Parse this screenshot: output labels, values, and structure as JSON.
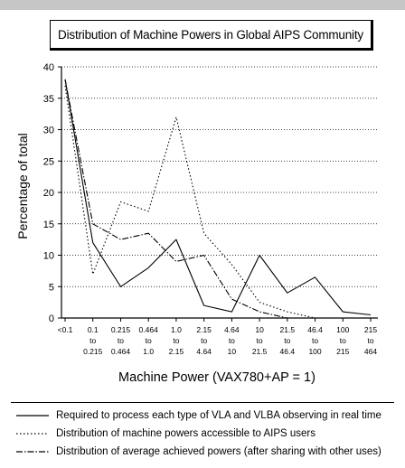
{
  "chart_data": {
    "type": "line",
    "title": "Distribution of Machine Powers in Global AIPS Community",
    "xlabel": "Machine Power (VAX780+AP = 1)",
    "ylabel": "Percentage of total",
    "ylim": [
      0,
      40
    ],
    "yticks": [
      "0",
      "5",
      "10",
      "15",
      "20",
      "25",
      "30",
      "35",
      "40"
    ],
    "grid": "horizontal dotted",
    "categories": [
      [
        "<0.1"
      ],
      [
        "0.1",
        "to",
        "0.215"
      ],
      [
        "0.215",
        "to",
        "0.464"
      ],
      [
        "0.464",
        "to",
        "1.0"
      ],
      [
        "1.0",
        "to",
        "2.15"
      ],
      [
        "2.15",
        "to",
        "4.64"
      ],
      [
        "4.64",
        "to",
        "10"
      ],
      [
        "10",
        "to",
        "21.5"
      ],
      [
        "21.5",
        "to",
        "46.4"
      ],
      [
        "46.4",
        "to",
        "100"
      ],
      [
        "100",
        "to",
        "215"
      ],
      [
        "215",
        "to",
        "464"
      ]
    ],
    "series": [
      {
        "name": "Required to process each type of VLA and VLBA observing in real time",
        "style": "solid",
        "values": [
          38,
          12,
          5,
          8,
          12.5,
          2,
          1,
          10,
          4,
          6.5,
          1,
          0.5
        ]
      },
      {
        "name": "Distribution of machine powers accessible to AIPS users",
        "style": "dotted",
        "values": [
          37,
          7,
          18.5,
          17,
          32,
          13.5,
          8.5,
          2.5,
          1,
          0,
          null,
          null
        ]
      },
      {
        "name": "Distribution of average achieved powers (after sharing with other uses)",
        "style": "dashdot",
        "values": [
          38,
          15,
          12.5,
          13.5,
          9,
          10,
          3,
          1,
          0,
          null,
          null,
          null
        ]
      }
    ],
    "legend": "bottom"
  }
}
